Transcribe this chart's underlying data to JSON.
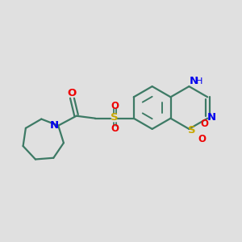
{
  "bg_color": "#e0e0e0",
  "bond_color": "#3d7a65",
  "N_color": "#0000ee",
  "S_color": "#c8a800",
  "O_color": "#ee0000",
  "line_width": 1.6,
  "figsize": [
    3.0,
    3.0
  ],
  "dpi": 100,
  "xlim": [
    0,
    10
  ],
  "ylim": [
    0,
    10
  ]
}
